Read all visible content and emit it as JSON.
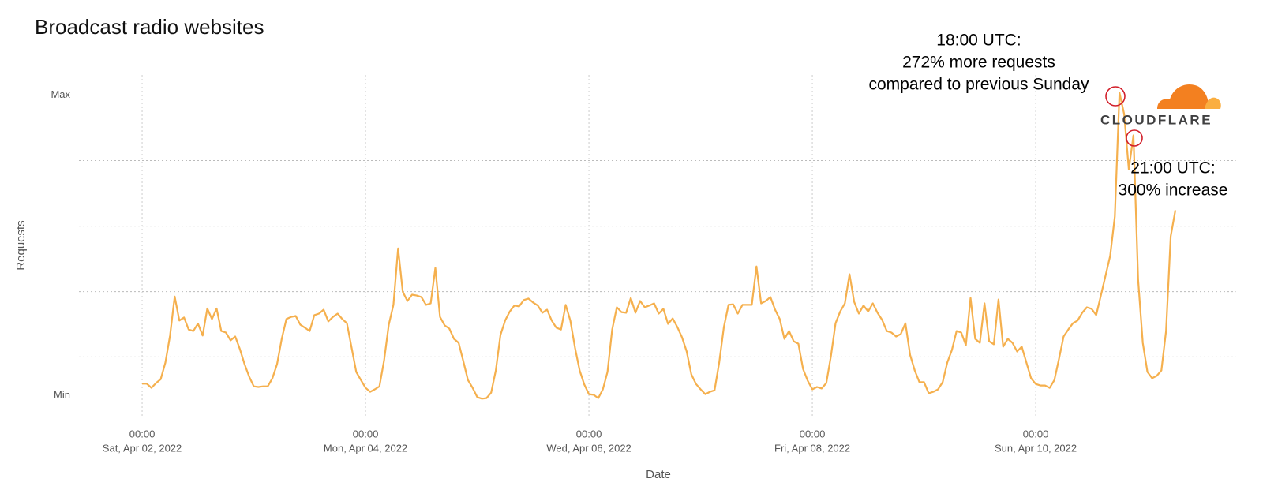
{
  "chart_data": {
    "type": "line",
    "title": "Broadcast radio websites",
    "xlabel": "Date",
    "ylabel": "Requests",
    "logo": "CLOUDFLARE",
    "color": "#f5b04e",
    "annotations": [
      {
        "text": [
          "18:00 UTC:",
          "272% more requests",
          "compared to previous Sunday"
        ]
      },
      {
        "text": [
          "21:00 UTC:",
          "300% increase"
        ]
      }
    ],
    "xlim": [
      "2022-04-01 10:00",
      "2022-04-11 19:00"
    ],
    "xticks": [
      {
        "value": "2022-04-02 00:00",
        "label": [
          "00:00",
          "Sat, Apr 02, 2022"
        ]
      },
      {
        "value": "2022-04-04 00:00",
        "label": [
          "00:00",
          "Mon, Apr 04, 2022"
        ]
      },
      {
        "value": "2022-04-06 00:00",
        "label": [
          "00:00",
          "Wed, Apr 06, 2022"
        ]
      },
      {
        "value": "2022-04-08 00:00",
        "label": [
          "00:00",
          "Fri, Apr 08, 2022"
        ]
      },
      {
        "value": "2022-04-10 00:00",
        "label": [
          "00:00",
          "Sun, Apr 10, 2022"
        ]
      }
    ],
    "ylim": [
      -8,
      108
    ],
    "yticks": [
      {
        "value": 0,
        "label": "Min"
      },
      {
        "value": 100,
        "label": "Max"
      }
    ],
    "ygrid": [
      12.9,
      34.6,
      56.4,
      78.2,
      100
    ],
    "grid": true,
    "x": [
      "2022-04-02 00:00",
      "2022-04-02 01:00",
      "2022-04-02 02:00",
      "2022-04-02 03:00",
      "2022-04-02 04:00",
      "2022-04-02 05:00",
      "2022-04-02 06:00",
      "2022-04-02 07:00",
      "2022-04-02 08:00",
      "2022-04-02 09:00",
      "2022-04-02 10:00",
      "2022-04-02 11:00",
      "2022-04-02 12:00",
      "2022-04-02 13:00",
      "2022-04-02 14:00",
      "2022-04-02 15:00",
      "2022-04-02 16:00",
      "2022-04-02 17:00",
      "2022-04-02 18:00",
      "2022-04-02 19:00",
      "2022-04-02 20:00",
      "2022-04-02 21:00",
      "2022-04-02 22:00",
      "2022-04-02 23:00",
      "2022-04-03 00:00",
      "2022-04-03 01:00",
      "2022-04-03 02:00",
      "2022-04-03 03:00",
      "2022-04-03 04:00",
      "2022-04-03 05:00",
      "2022-04-03 06:00",
      "2022-04-03 07:00",
      "2022-04-03 08:00",
      "2022-04-03 09:00",
      "2022-04-03 10:00",
      "2022-04-03 11:00",
      "2022-04-03 12:00",
      "2022-04-03 13:00",
      "2022-04-03 14:00",
      "2022-04-03 15:00",
      "2022-04-03 16:00",
      "2022-04-03 17:00",
      "2022-04-03 18:00",
      "2022-04-03 19:00",
      "2022-04-03 20:00",
      "2022-04-03 21:00",
      "2022-04-03 22:00",
      "2022-04-03 23:00",
      "2022-04-04 00:00",
      "2022-04-04 01:00",
      "2022-04-04 02:00",
      "2022-04-04 03:00",
      "2022-04-04 04:00",
      "2022-04-04 05:00",
      "2022-04-04 06:00",
      "2022-04-04 07:00",
      "2022-04-04 08:00",
      "2022-04-04 09:00",
      "2022-04-04 10:00",
      "2022-04-04 11:00",
      "2022-04-04 12:00",
      "2022-04-04 13:00",
      "2022-04-04 14:00",
      "2022-04-04 15:00",
      "2022-04-04 16:00",
      "2022-04-04 17:00",
      "2022-04-04 18:00",
      "2022-04-04 19:00",
      "2022-04-04 20:00",
      "2022-04-04 21:00",
      "2022-04-04 22:00",
      "2022-04-04 23:00",
      "2022-04-05 00:00",
      "2022-04-05 01:00",
      "2022-04-05 02:00",
      "2022-04-05 03:00",
      "2022-04-05 04:00",
      "2022-04-05 05:00",
      "2022-04-05 06:00",
      "2022-04-05 07:00",
      "2022-04-05 08:00",
      "2022-04-05 09:00",
      "2022-04-05 10:00",
      "2022-04-05 11:00",
      "2022-04-05 12:00",
      "2022-04-05 13:00",
      "2022-04-05 14:00",
      "2022-04-05 15:00",
      "2022-04-05 16:00",
      "2022-04-05 17:00",
      "2022-04-05 18:00",
      "2022-04-05 19:00",
      "2022-04-05 20:00",
      "2022-04-05 21:00",
      "2022-04-05 22:00",
      "2022-04-05 23:00",
      "2022-04-06 00:00",
      "2022-04-06 01:00",
      "2022-04-06 02:00",
      "2022-04-06 03:00",
      "2022-04-06 04:00",
      "2022-04-06 05:00",
      "2022-04-06 06:00",
      "2022-04-06 07:00",
      "2022-04-06 08:00",
      "2022-04-06 09:00",
      "2022-04-06 10:00",
      "2022-04-06 11:00",
      "2022-04-06 12:00",
      "2022-04-06 13:00",
      "2022-04-06 14:00",
      "2022-04-06 15:00",
      "2022-04-06 16:00",
      "2022-04-06 17:00",
      "2022-04-06 18:00",
      "2022-04-06 19:00",
      "2022-04-06 20:00",
      "2022-04-06 21:00",
      "2022-04-06 22:00",
      "2022-04-06 23:00",
      "2022-04-07 00:00",
      "2022-04-07 01:00",
      "2022-04-07 02:00",
      "2022-04-07 03:00",
      "2022-04-07 04:00",
      "2022-04-07 05:00",
      "2022-04-07 06:00",
      "2022-04-07 07:00",
      "2022-04-07 08:00",
      "2022-04-07 09:00",
      "2022-04-07 10:00",
      "2022-04-07 11:00",
      "2022-04-07 12:00",
      "2022-04-07 13:00",
      "2022-04-07 14:00",
      "2022-04-07 15:00",
      "2022-04-07 16:00",
      "2022-04-07 17:00",
      "2022-04-07 18:00",
      "2022-04-07 19:00",
      "2022-04-07 20:00",
      "2022-04-07 21:00",
      "2022-04-07 22:00",
      "2022-04-07 23:00",
      "2022-04-08 00:00",
      "2022-04-08 01:00",
      "2022-04-08 02:00",
      "2022-04-08 03:00",
      "2022-04-08 04:00",
      "2022-04-08 05:00",
      "2022-04-08 06:00",
      "2022-04-08 07:00",
      "2022-04-08 08:00",
      "2022-04-08 09:00",
      "2022-04-08 10:00",
      "2022-04-08 11:00",
      "2022-04-08 12:00",
      "2022-04-08 13:00",
      "2022-04-08 14:00",
      "2022-04-08 15:00",
      "2022-04-08 16:00",
      "2022-04-08 17:00",
      "2022-04-08 18:00",
      "2022-04-08 19:00",
      "2022-04-08 20:00",
      "2022-04-08 21:00",
      "2022-04-08 22:00",
      "2022-04-08 23:00",
      "2022-04-09 00:00",
      "2022-04-09 01:00",
      "2022-04-09 02:00",
      "2022-04-09 03:00",
      "2022-04-09 04:00",
      "2022-04-09 05:00",
      "2022-04-09 06:00",
      "2022-04-09 07:00",
      "2022-04-09 08:00",
      "2022-04-09 09:00",
      "2022-04-09 10:00",
      "2022-04-09 11:00",
      "2022-04-09 12:00",
      "2022-04-09 13:00",
      "2022-04-09 14:00",
      "2022-04-09 15:00",
      "2022-04-09 16:00",
      "2022-04-09 17:00",
      "2022-04-09 18:00",
      "2022-04-09 19:00",
      "2022-04-09 20:00",
      "2022-04-09 21:00",
      "2022-04-09 22:00",
      "2022-04-09 23:00",
      "2022-04-10 00:00",
      "2022-04-10 01:00",
      "2022-04-10 02:00",
      "2022-04-10 03:00",
      "2022-04-10 04:00",
      "2022-04-10 05:00",
      "2022-04-10 06:00",
      "2022-04-10 07:00",
      "2022-04-10 08:00",
      "2022-04-10 09:00",
      "2022-04-10 10:00",
      "2022-04-10 11:00",
      "2022-04-10 12:00",
      "2022-04-10 13:00",
      "2022-04-10 14:00",
      "2022-04-10 15:00",
      "2022-04-10 16:00",
      "2022-04-10 17:00",
      "2022-04-10 18:00",
      "2022-04-10 19:00",
      "2022-04-10 20:00",
      "2022-04-10 21:00",
      "2022-04-10 22:00",
      "2022-04-10 23:00",
      "2022-04-11 00:00",
      "2022-04-11 01:00",
      "2022-04-11 02:00",
      "2022-04-11 03:00",
      "2022-04-11 04:00",
      "2022-04-11 05:00",
      "2022-04-11 06:00"
    ],
    "values": [
      4,
      4,
      2.6,
      4.2,
      5.5,
      11,
      20,
      33,
      25,
      26,
      22,
      21.5,
      24,
      20,
      29,
      25.5,
      29,
      21.5,
      21,
      18.4,
      19.7,
      15.5,
      10.5,
      6.3,
      3.1,
      2.9,
      3.1,
      3.1,
      5.8,
      10.5,
      18.9,
      25.5,
      26.2,
      26.5,
      23.6,
      22.6,
      21.5,
      26.8,
      27.3,
      28.6,
      24.7,
      26.2,
      27.3,
      25.5,
      24.1,
      16,
      7.9,
      5.2,
      2.6,
      1.3,
      2.1,
      3.1,
      11.8,
      23.6,
      30.2,
      49,
      34.6,
      31.5,
      33.6,
      33.3,
      32.8,
      30.2,
      30.7,
      42.5,
      26.2,
      23.4,
      22.3,
      18.9,
      17.6,
      11.5,
      5.2,
      2.6,
      -0.5,
      -1,
      -0.8,
      1,
      8.4,
      20.2,
      25,
      28,
      30,
      29.7,
      31.8,
      32.3,
      31,
      30,
      27.6,
      28.6,
      25,
      22.6,
      22,
      30.2,
      25,
      16,
      8.4,
      3.7,
      0.5,
      0.3,
      -0.8,
      2.1,
      7.9,
      22,
      29.4,
      27.8,
      27.6,
      32.5,
      27.6,
      31.5,
      29.4,
      30,
      30.7,
      27.3,
      28.9,
      23.9,
      25.7,
      22.8,
      19.4,
      14.7,
      7.1,
      3.9,
      2.1,
      0.5,
      1.3,
      1.8,
      11,
      22.8,
      30.2,
      30.4,
      27.3,
      30.2,
      30.2,
      30.2,
      43,
      30.7,
      31.5,
      32.8,
      28.6,
      25.5,
      18.9,
      21.5,
      18.1,
      17.3,
      8.9,
      5,
      2.1,
      2.9,
      2.4,
      4.2,
      13.1,
      24.1,
      28,
      30.7,
      40.4,
      31.2,
      27.3,
      30,
      28,
      30.7,
      27.6,
      25.2,
      21.5,
      21,
      19.7,
      20.5,
      24.1,
      13.6,
      8.4,
      4.5,
      4.5,
      0.8,
      1.3,
      2.1,
      4.5,
      11,
      15.2,
      21.5,
      21,
      16.8,
      32.5,
      18.9,
      17.6,
      30.7,
      18.1,
      17.1,
      32,
      16.3,
      18.9,
      17.6,
      14.7,
      16.3,
      11,
      5.8,
      3.9,
      3.4,
      3.4,
      2.6,
      5.2,
      12.3,
      19.7,
      22,
      24.1,
      25,
      27.6,
      29.4,
      28.9,
      26.8,
      33.3,
      39.9,
      46.5,
      59.6,
      100.8,
      93.7,
      75.3,
      86.6,
      38.6,
      17.6,
      7.9,
      5.8,
      6.6,
      8.4,
      21.5,
      53,
      61.7
    ]
  }
}
